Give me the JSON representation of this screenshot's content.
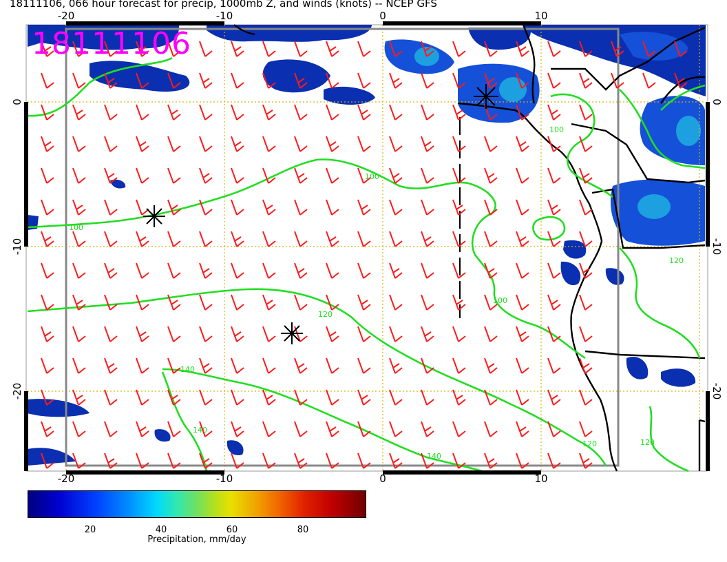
{
  "title": "18111106, 066 hour forecast for precip, 1000mb Z, and winds (knots) -- NCEP GFS",
  "stamp": "18111106",
  "axes": {
    "lon_ticks": [
      "-20",
      "-10",
      "0",
      "10"
    ],
    "lat_ticks": [
      "0",
      "-10",
      "-20"
    ]
  },
  "contours": {
    "labels": [
      "100",
      "100",
      "120",
      "140",
      "140",
      "140",
      "100",
      "100",
      "120",
      "120",
      "120"
    ],
    "color": "#22dd22"
  },
  "colorbar": {
    "ticks": [
      "20",
      "40",
      "60",
      "80"
    ],
    "label": "Precipitation, mm/day"
  },
  "colors": {
    "wind_barbs": "#ff1a1a",
    "gridlines": "#d8b400",
    "precip_low": "#00007f",
    "stamp": "#ff00ff"
  }
}
